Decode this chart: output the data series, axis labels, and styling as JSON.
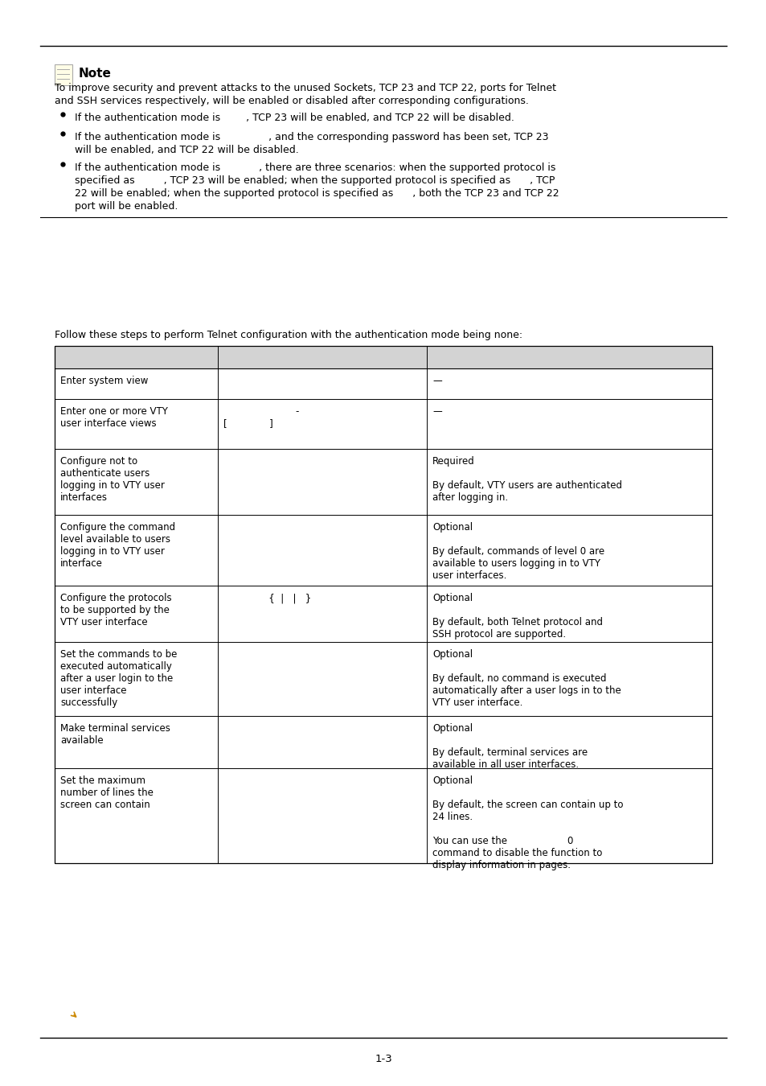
{
  "bg_color": "#ffffff",
  "text_color": "#000000",
  "page_number": "1-3",
  "note_title": "Note",
  "note_body_line1": "To improve security and prevent attacks to the unused Sockets, TCP 23 and TCP 22, ports for Telnet",
  "note_body_line2": "and SSH services respectively, will be enabled or disabled after corresponding configurations.",
  "bullet1": "If the authentication mode is        , TCP 23 will be enabled, and TCP 22 will be disabled.",
  "bullet2_line1": "If the authentication mode is               , and the corresponding password has been set, TCP 23",
  "bullet2_line2": "will be enabled, and TCP 22 will be disabled.",
  "bullet3_line1": "If the authentication mode is            , there are three scenarios: when the supported protocol is",
  "bullet3_line2": "specified as         , TCP 23 will be enabled; when the supported protocol is specified as      , TCP",
  "bullet3_line3": "22 will be enabled; when the supported protocol is specified as      , both the TCP 23 and TCP 22",
  "bullet3_line4": "port will be enabled.",
  "intro_text": "Follow these steps to perform Telnet configuration with the authentication mode being none:",
  "table_header_bg": "#d3d3d3",
  "table_rows": [
    {
      "col1": "Enter system view",
      "col2": "",
      "col3": "—"
    },
    {
      "col1": "Enter one or more VTY\nuser interface views",
      "col2": "                        -\n[              ]",
      "col3": "—"
    },
    {
      "col1": "Configure not to\nauthenticate users\nlogging in to VTY user\ninterfaces",
      "col2": "",
      "col3": "Required\n\nBy default, VTY users are authenticated\nafter logging in."
    },
    {
      "col1": "Configure the command\nlevel available to users\nlogging in to VTY user\ninterface",
      "col2": "",
      "col3": "Optional\n\nBy default, commands of level 0 are\navailable to users logging in to VTY\nuser interfaces."
    },
    {
      "col1": "Configure the protocols\nto be supported by the\nVTY user interface",
      "col2": "               {  |   |   }",
      "col3": "Optional\n\nBy default, both Telnet protocol and\nSSH protocol are supported."
    },
    {
      "col1": "Set the commands to be\nexecuted automatically\nafter a user login to the\nuser interface\nsuccessfully",
      "col2": "",
      "col3": "Optional\n\nBy default, no command is executed\nautomatically after a user logs in to the\nVTY user interface."
    },
    {
      "col1": "Make terminal services\navailable",
      "col2": "",
      "col3": "Optional\n\nBy default, terminal services are\navailable in all user interfaces."
    },
    {
      "col1": "Set the maximum\nnumber of lines the\nscreen can contain",
      "col2": "",
      "col3": "Optional\n\nBy default, the screen can contain up to\n24 lines.\n\nYou can use the                    0\ncommand to disable the function to\ndisplay information in pages."
    }
  ],
  "font_size_body": 9.0,
  "font_size_note": 9.0,
  "font_size_small": 8.5
}
